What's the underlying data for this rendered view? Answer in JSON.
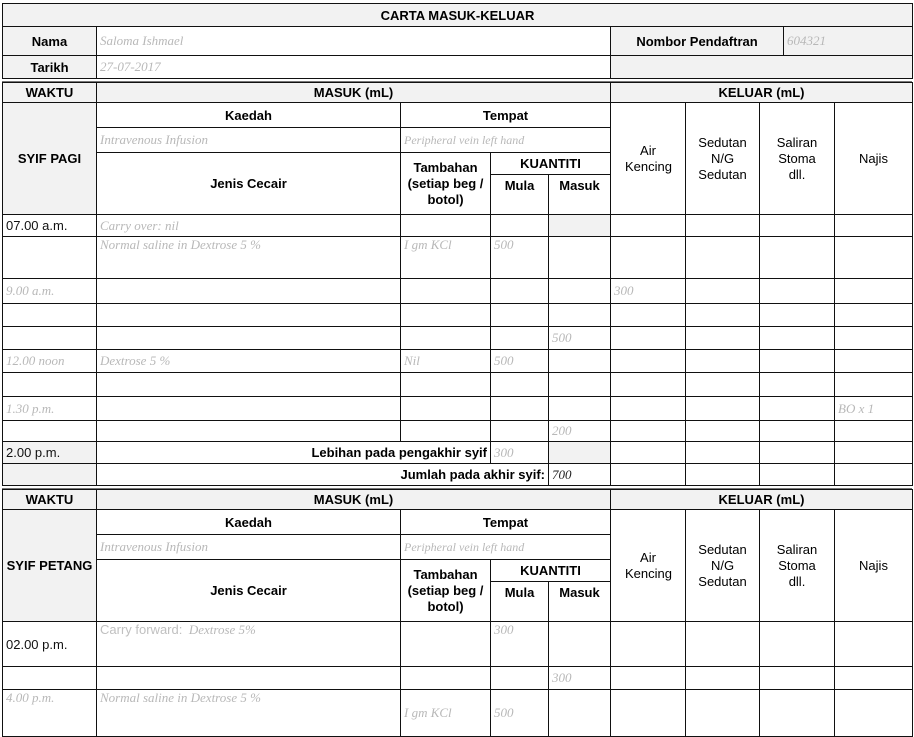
{
  "title": "CARTA MASUK-KELUAR",
  "patient": {
    "name_label": "Nama",
    "name_value": "Saloma Ishmael",
    "reg_label": "Nombor Pendaftran",
    "reg_value": "604321",
    "date_label": "Tarikh",
    "date_value": "27-07-2017"
  },
  "headers": {
    "waktu": "WAKTU",
    "masuk": "MASUK (mL)",
    "keluar": "KELUAR (mL)",
    "kaedah": "Kaedah",
    "tempat": "Tempat",
    "jenis": "Jenis Cecair",
    "tambahan": "Tambahan (setiap beg / botol)",
    "kuantiti": "KUANTITI",
    "mula": "Mula",
    "masuk_col": "Masuk",
    "air": "Air Kencing",
    "sedutan": "Sedutan N/G Sedutan",
    "saliran": "Saliran Stoma dll.",
    "najis": "Najis"
  },
  "shift_pagi": {
    "label": "SYIF PAGI",
    "kaedah_value": "Intravenous Infusion",
    "tempat_value": "Peripheral vein left hand",
    "rows": [
      {
        "h": 22,
        "cells": [
          "07.00 a.m.",
          "Carry over: nil",
          "",
          "",
          "",
          "",
          "",
          "",
          ""
        ],
        "printed_time": true,
        "gray_masuk": true
      },
      {
        "h": 42,
        "cells": [
          "",
          "Normal saline in Dextrose 5 %",
          "I gm KCl",
          "500",
          "",
          "",
          "",
          "",
          ""
        ]
      },
      {
        "h": 25,
        "cells": [
          "9.00 a.m.",
          "",
          "",
          "",
          "",
          "300",
          "",
          "",
          ""
        ]
      },
      {
        "h": 23,
        "cells": [
          "",
          "",
          "",
          "",
          "",
          "",
          "",
          "",
          ""
        ]
      },
      {
        "h": 23,
        "cells": [
          "",
          "",
          "",
          "",
          "500",
          "",
          "",
          "",
          ""
        ]
      },
      {
        "h": 23,
        "cells": [
          "12.00 noon",
          "Dextrose 5 %",
          "Nil",
          "500",
          "",
          "",
          "",
          "",
          ""
        ]
      },
      {
        "h": 24,
        "cells": [
          "",
          "",
          "",
          "",
          "",
          "",
          "",
          "",
          ""
        ]
      },
      {
        "h": 24,
        "cells": [
          "1.30 p.m.",
          "",
          "",
          "",
          "",
          "",
          "",
          "",
          "BO x 1"
        ]
      },
      {
        "h": 21,
        "cells": [
          "",
          "",
          "",
          "",
          "200",
          "",
          "",
          "",
          ""
        ]
      }
    ],
    "surplus": {
      "time": "2.00 p.m.",
      "label": "Lebihan pada pengakhir syif",
      "value": "300"
    },
    "total": {
      "label": "Jumlah pada akhir syif:",
      "value": "700"
    }
  },
  "shift_petang": {
    "label": "SYIF PETANG",
    "kaedah_value": "Intravenous Infusion",
    "tempat_value": "Peripheral vein left hand",
    "carry_prefix": "Carry forward:",
    "rows": [
      {
        "h": 45,
        "cells": [
          "02.00 p.m.",
          "Dextrose 5%",
          "",
          "300",
          "",
          "",
          "",
          "",
          ""
        ],
        "printed_time": true,
        "carry": true
      },
      {
        "h": 23,
        "cells": [
          "",
          "",
          "",
          "",
          "300",
          "",
          "",
          "",
          ""
        ]
      },
      {
        "h": 47,
        "cells": [
          "4.00 p.m.",
          "Normal saline in Dextrose 5 %",
          "I gm KCl",
          "500",
          "",
          "",
          "",
          "",
          ""
        ],
        "low": true
      }
    ]
  }
}
